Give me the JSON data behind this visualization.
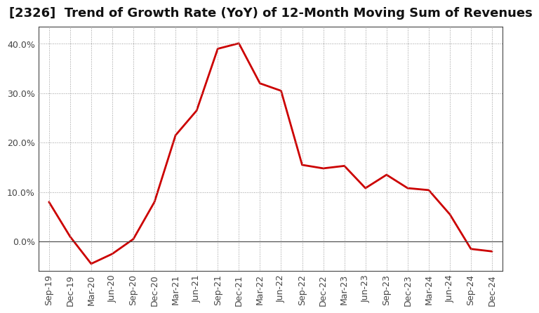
{
  "title": "[2326]  Trend of Growth Rate (YoY) of 12-Month Moving Sum of Revenues",
  "x_labels": [
    "Sep-19",
    "Dec-19",
    "Mar-20",
    "Jun-20",
    "Sep-20",
    "Dec-20",
    "Mar-21",
    "Jun-21",
    "Sep-21",
    "Dec-21",
    "Mar-22",
    "Jun-22",
    "Sep-22",
    "Dec-22",
    "Mar-23",
    "Jun-23",
    "Sep-23",
    "Dec-23",
    "Mar-24",
    "Jun-24",
    "Sep-24",
    "Dec-24"
  ],
  "y_values": [
    0.08,
    0.01,
    -0.045,
    -0.025,
    0.005,
    0.08,
    0.215,
    0.265,
    0.39,
    0.401,
    0.32,
    0.305,
    0.155,
    0.148,
    0.153,
    0.108,
    0.135,
    0.108,
    0.104,
    0.055,
    -0.015,
    -0.02
  ],
  "line_color": "#cc0000",
  "line_width": 2.0,
  "background_color": "#ffffff",
  "grid_color": "#999999",
  "ylim": [
    -0.06,
    0.435
  ],
  "yticks": [
    0.0,
    0.1,
    0.2,
    0.3,
    0.4
  ],
  "title_fontsize": 13,
  "tick_fontsize": 9,
  "axis_label_color": "#444444",
  "spine_color": "#444444"
}
